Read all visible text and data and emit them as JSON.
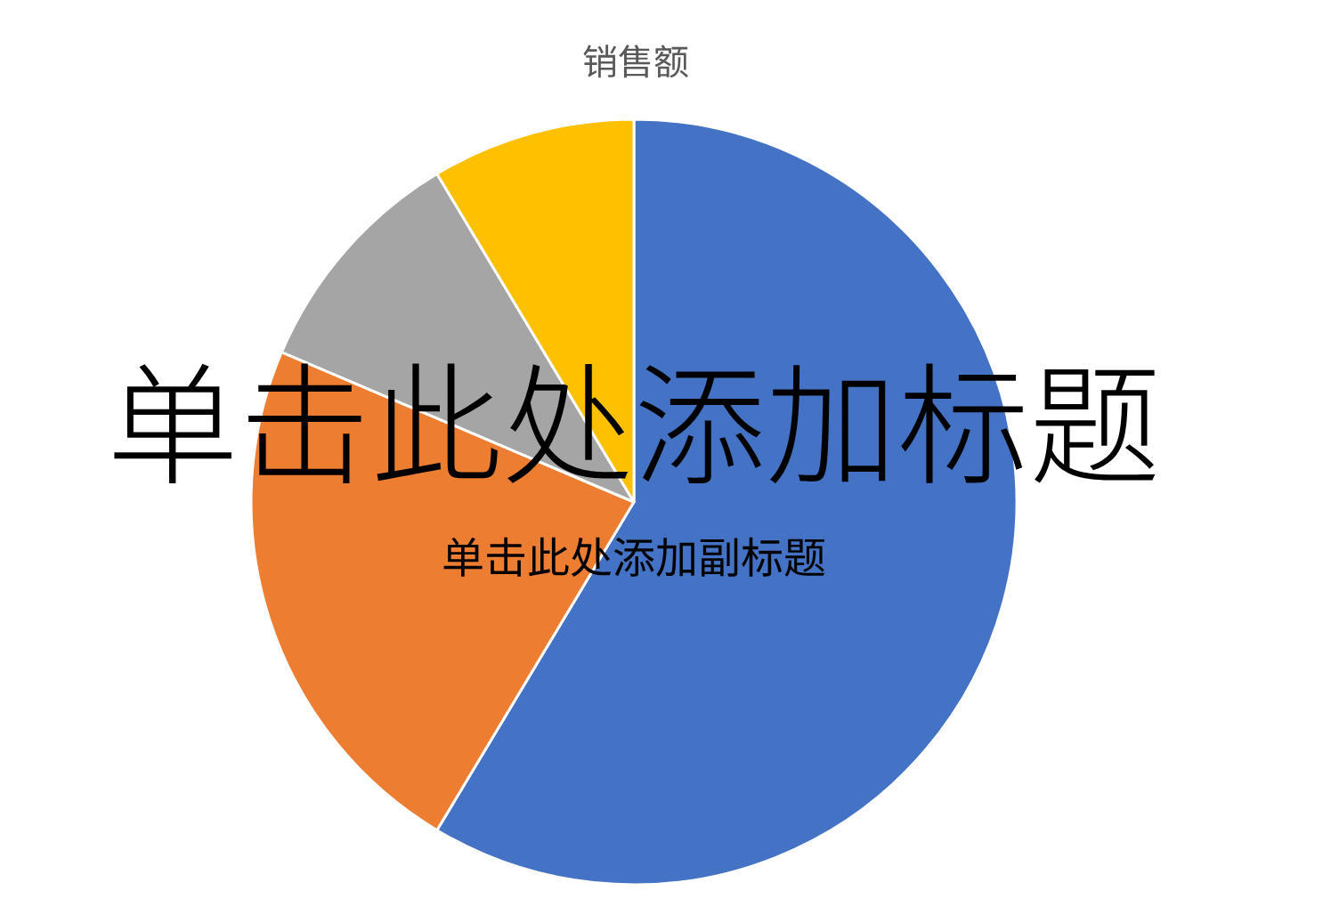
{
  "chart_data": {
    "type": "pie",
    "title": "销售额",
    "categories": [
      null,
      null,
      null,
      null
    ],
    "values": [
      58.6,
      22.8,
      10.0,
      8.6
    ],
    "colors": [
      "#4472c4",
      "#ed7d31",
      "#a5a5a5",
      "#ffc000"
    ],
    "annotations": [
      "单击此处添加标题",
      "单击此处添加副标题"
    ]
  }
}
